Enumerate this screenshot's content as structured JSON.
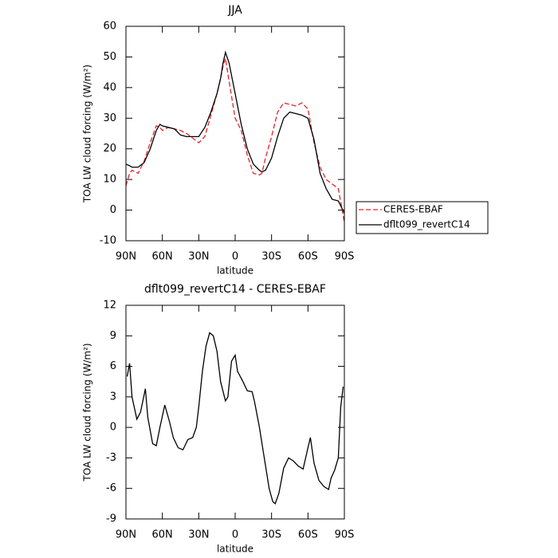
{
  "chart_data": [
    {
      "type": "line",
      "title": "JJA",
      "x_label": "latitude",
      "y_label": "TOA LW cloud forcing (W/m²)",
      "x": [
        90,
        87,
        85,
        80,
        75,
        70,
        65,
        62,
        60,
        55,
        50,
        45,
        40,
        35,
        30,
        25,
        20,
        15,
        12,
        10,
        8,
        5,
        0,
        -5,
        -10,
        -15,
        -20,
        -22,
        -25,
        -30,
        -35,
        -40,
        -45,
        -50,
        -55,
        -60,
        -65,
        -70,
        -75,
        -80,
        -85,
        -90
      ],
      "series": [
        {
          "name": "CERES-EBAF",
          "color": "#e8202a",
          "line_style": "dashed",
          "values": [
            8,
            12,
            13,
            12,
            16,
            22,
            27.5,
            27,
            26,
            27,
            26.5,
            26,
            25,
            23.5,
            22,
            24,
            31,
            38,
            43,
            47,
            49.5,
            42,
            30,
            26,
            18,
            12,
            11.5,
            12,
            17,
            24,
            32,
            35,
            34.5,
            34,
            35,
            33,
            22,
            14,
            10,
            8.5,
            7,
            -4
          ]
        },
        {
          "name": "dflt099_revertC14",
          "color": "#000000",
          "line_style": "solid",
          "values": [
            15,
            14.5,
            14,
            14,
            15.5,
            20,
            26,
            28,
            27.5,
            27,
            26.5,
            24.5,
            24,
            24,
            24,
            27,
            32,
            38,
            43,
            48,
            51.5,
            48,
            38,
            28,
            20,
            15,
            13,
            12.5,
            13,
            17,
            24,
            30,
            32,
            31.5,
            31,
            30,
            23,
            12,
            7,
            3.5,
            3,
            -1
          ]
        }
      ],
      "xlim": [
        90,
        -90
      ],
      "ylim": [
        -10,
        60
      ],
      "xticks": [
        {
          "value": 90,
          "label": "90N"
        },
        {
          "value": 60,
          "label": "60N"
        },
        {
          "value": 30,
          "label": "30N"
        },
        0,
        {
          "value": -30,
          "label": "30S"
        },
        {
          "value": -60,
          "label": "60S"
        },
        {
          "value": -90,
          "label": "90S"
        }
      ],
      "yticks": [
        -10,
        0,
        10,
        20,
        30,
        40,
        50,
        60
      ],
      "legend": "right"
    },
    {
      "type": "line",
      "title": "dflt099_revertC14 - CERES-EBAF",
      "x_label": "latitude",
      "y_label": "TOA LW cloud forcing (W/m²)",
      "x": [
        89,
        87,
        85,
        81,
        78,
        75,
        74,
        72,
        68,
        65,
        62,
        58,
        54,
        51,
        47,
        43,
        39,
        35,
        32,
        30,
        27,
        24,
        21,
        18,
        15,
        12,
        8,
        6,
        3,
        0,
        -2,
        -6,
        -10,
        -14,
        -16,
        -20,
        -24,
        -28,
        -31,
        -33,
        -36,
        -40,
        -44,
        -48,
        -52,
        -56,
        -60,
        -62,
        -65,
        -69,
        -73,
        -77,
        -79,
        -82,
        -85,
        -87,
        -89
      ],
      "series": [
        {
          "name": "dflt099_revertC14 - CERES-EBAF",
          "color": "#000000",
          "line_style": "solid",
          "values": [
            5,
            6.3,
            3,
            0.8,
            1.5,
            3.2,
            3.8,
            1,
            -1.6,
            -1.8,
            0,
            2.2,
            0.5,
            -1,
            -2,
            -2.2,
            -1.2,
            -1,
            0,
            2,
            5.5,
            8,
            9.3,
            9,
            7.5,
            4.5,
            2.6,
            3,
            6.5,
            7.1,
            5.5,
            4.6,
            3.6,
            3.5,
            2.5,
            0,
            -3,
            -6,
            -7.3,
            -7.5,
            -6.5,
            -4,
            -3,
            -3.3,
            -3.8,
            -4.1,
            -2,
            -1,
            -3.5,
            -5.2,
            -5.8,
            -6.1,
            -5,
            -4.2,
            -3,
            2,
            4
          ]
        }
      ],
      "xlim": [
        90,
        -90
      ],
      "ylim": [
        -9,
        12
      ],
      "xticks": [
        {
          "value": 90,
          "label": "90N"
        },
        {
          "value": 60,
          "label": "60N"
        },
        {
          "value": 30,
          "label": "30N"
        },
        0,
        {
          "value": -30,
          "label": "30S"
        },
        {
          "value": -60,
          "label": "60S"
        },
        {
          "value": -90,
          "label": "90S"
        }
      ],
      "yticks": [
        -9,
        -6,
        -3,
        0,
        3,
        6,
        9,
        12
      ]
    }
  ]
}
